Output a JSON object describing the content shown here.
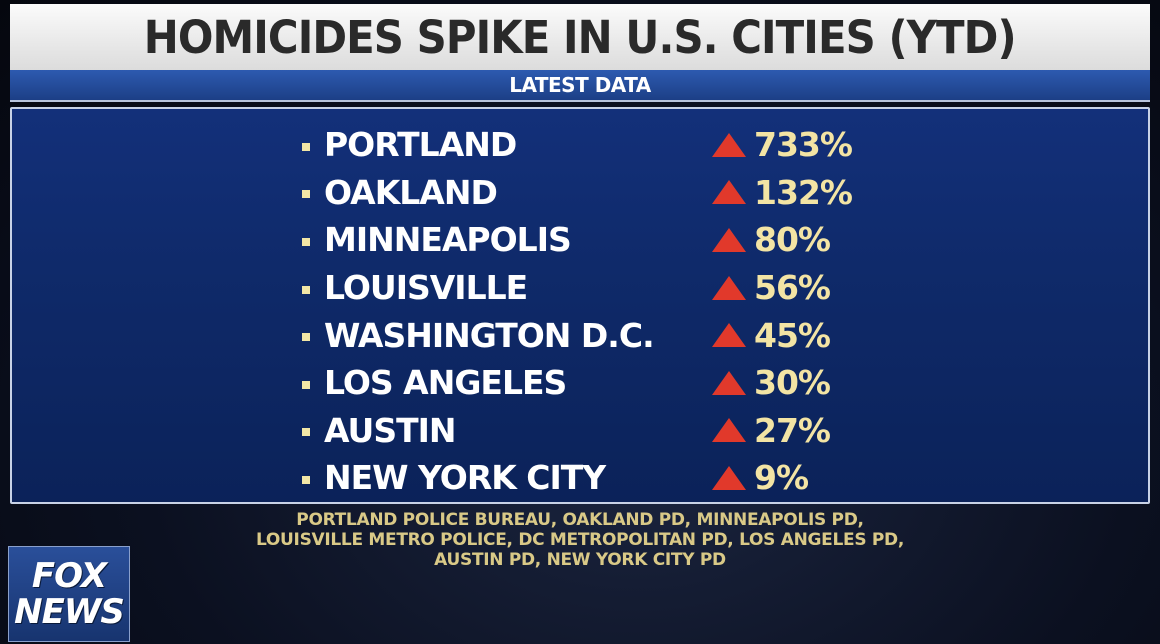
{
  "headline": "HOMICIDES SPIKE IN U.S. CITIES (YTD)",
  "subheadline": "LATEST DATA",
  "rows": [
    {
      "city": "PORTLAND",
      "change": "733%"
    },
    {
      "city": "OAKLAND",
      "change": "132%"
    },
    {
      "city": "MINNEAPOLIS",
      "change": "80%"
    },
    {
      "city": "LOUISVILLE",
      "change": "56%"
    },
    {
      "city": "WASHINGTON D.C.",
      "change": "45%"
    },
    {
      "city": "LOS ANGELES",
      "change": "30%"
    },
    {
      "city": "AUSTIN",
      "change": "27%"
    },
    {
      "city": "NEW YORK CITY",
      "change": "9%"
    }
  ],
  "sources": [
    "PORTLAND POLICE BUREAU, OAKLAND PD, MINNEAPOLIS PD,",
    "LOUISVILLE METRO POLICE, DC METROPOLITAN PD, LOS ANGELES PD,",
    "AUSTIN PD, NEW YORK CITY PD"
  ],
  "logo": {
    "line1": "FOX",
    "line2": "NEWS"
  },
  "colors": {
    "increase_arrow": "#e1392b",
    "percent_text": "#f3e4a4",
    "panel": "#13307a",
    "source_text": "#d9c987"
  },
  "icons": {
    "increase": "up-triangle-icon",
    "bullet": "square-bullet-icon"
  }
}
